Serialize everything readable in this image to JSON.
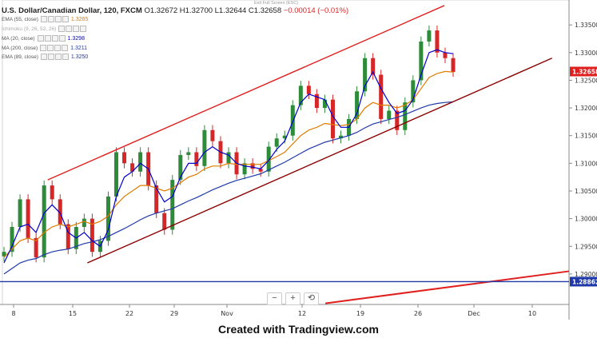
{
  "header": {
    "symbol": "U.S. Dollar/Canadian Dollar, 120, FXCM",
    "ohlc": "O1.32672 H1.32700 L1.32644 C1.32658",
    "change": "−0.00014 (−0.01%)",
    "exit_fullscreen": "Exit Full Screen (ESC)"
  },
  "indicators": [
    {
      "label": "EMA (55, close)",
      "value": "1.3265",
      "color": "#e07b00",
      "dim": false
    },
    {
      "label": "Ichimoku (9, 26, 52, 26)",
      "value": "",
      "color": "#aaaaaa",
      "dim": true
    },
    {
      "label": "MA (20, close)",
      "value": "1.3298",
      "color": "#0000cc",
      "dim": false
    },
    {
      "label": "MA (200, close)",
      "value": "1.3211",
      "color": "#1f3aa8",
      "dim": false
    },
    {
      "label": "EMA (89, close)",
      "value": "1.3250",
      "color": "#1f3aa8",
      "dim": false
    }
  ],
  "footer": "Created with Tradingview.com",
  "zoom": {
    "minus": "−",
    "plus": "+",
    "reset": "⟲"
  },
  "chart_data": {
    "type": "candlestick",
    "symbol": "USD/CAD",
    "timeframe": "120",
    "ylim": [
      1.2845,
      1.3395
    ],
    "y_ticks": [
      "1.33500",
      "1.33000",
      "1.32500",
      "1.32000",
      "1.31500",
      "1.31000",
      "1.30500",
      "1.30000",
      "1.29500",
      "1.29000"
    ],
    "x_ticks": [
      "8",
      "15",
      "22",
      "29",
      "Nov",
      "12",
      "19",
      "26",
      "Dec",
      "10"
    ],
    "last_price": "1.32658",
    "support_price": "1.28862",
    "closes": [
      1.294,
      1.2985,
      1.3035,
      1.2965,
      1.293,
      1.306,
      1.3035,
      1.299,
      1.2945,
      1.2985,
      1.3,
      1.294,
      1.296,
      1.304,
      1.312,
      1.31,
      1.3085,
      1.312,
      1.306,
      1.301,
      1.298,
      1.307,
      1.3115,
      1.312,
      1.3095,
      1.316,
      1.314,
      1.31,
      1.312,
      1.308,
      1.31,
      1.309,
      1.3085,
      1.313,
      1.3145,
      1.315,
      1.3205,
      1.324,
      1.3225,
      1.32,
      1.3215,
      1.3145,
      1.315,
      1.318,
      1.323,
      1.329,
      1.326,
      1.318,
      1.3195,
      1.316,
      1.321,
      1.325,
      1.332,
      1.334,
      1.33,
      1.329,
      1.3265
    ],
    "ema55": [
      1.293,
      1.2945,
      1.296,
      1.2965,
      1.296,
      1.2975,
      1.2985,
      1.299,
      1.2985,
      1.299,
      1.2995,
      1.299,
      1.2995,
      1.3005,
      1.3025,
      1.304,
      1.305,
      1.306,
      1.306,
      1.3055,
      1.305,
      1.3055,
      1.3065,
      1.3075,
      1.308,
      1.309,
      1.3095,
      1.3095,
      1.31,
      1.3098,
      1.3098,
      1.3098,
      1.3098,
      1.3105,
      1.3112,
      1.312,
      1.3135,
      1.315,
      1.316,
      1.3165,
      1.3172,
      1.317,
      1.3168,
      1.317,
      1.318,
      1.32,
      1.321,
      1.3205,
      1.3205,
      1.32,
      1.3205,
      1.3215,
      1.3235,
      1.3255,
      1.3262,
      1.3266,
      1.3265
    ],
    "ma20": [
      1.292,
      1.295,
      1.2985,
      1.299,
      1.2975,
      1.301,
      1.3025,
      1.301,
      1.2975,
      1.2965,
      1.2975,
      1.296,
      1.295,
      1.298,
      1.304,
      1.3075,
      1.3085,
      1.31,
      1.309,
      1.3055,
      1.303,
      1.304,
      1.3075,
      1.31,
      1.31,
      1.312,
      1.313,
      1.312,
      1.3115,
      1.31,
      1.3095,
      1.3093,
      1.309,
      1.3105,
      1.3125,
      1.314,
      1.3175,
      1.321,
      1.3225,
      1.322,
      1.3215,
      1.3185,
      1.3165,
      1.3165,
      1.319,
      1.324,
      1.3265,
      1.3235,
      1.321,
      1.319,
      1.3195,
      1.3215,
      1.326,
      1.33,
      1.3305,
      1.33,
      1.3298
    ],
    "ma200": [
      1.29,
      1.291,
      1.292,
      1.2925,
      1.2928,
      1.2935,
      1.294,
      1.2943,
      1.2945,
      1.295,
      1.2955,
      1.2958,
      1.2962,
      1.2968,
      1.2975,
      1.2982,
      1.299,
      1.2998,
      1.3005,
      1.301,
      1.3014,
      1.3018,
      1.3025,
      1.3032,
      1.3038,
      1.3045,
      1.3052,
      1.3058,
      1.3064,
      1.3069,
      1.3073,
      1.3077,
      1.3081,
      1.3088,
      1.3095,
      1.3102,
      1.311,
      1.3118,
      1.3126,
      1.3132,
      1.3138,
      1.3142,
      1.3146,
      1.315,
      1.3156,
      1.3164,
      1.3171,
      1.3175,
      1.3179,
      1.3183,
      1.3188,
      1.3194,
      1.32,
      1.3205,
      1.3208,
      1.321,
      1.3211
    ],
    "channel_upper": [
      [
        0.08,
        1.307
      ],
      [
        0.78,
        1.3385
      ]
    ],
    "channel_lower": [
      [
        0.15,
        1.292
      ],
      [
        0.97,
        1.329
      ]
    ],
    "trend_line": [
      [
        0.57,
        1.2847
      ],
      [
        1.0,
        1.2905
      ]
    ]
  }
}
